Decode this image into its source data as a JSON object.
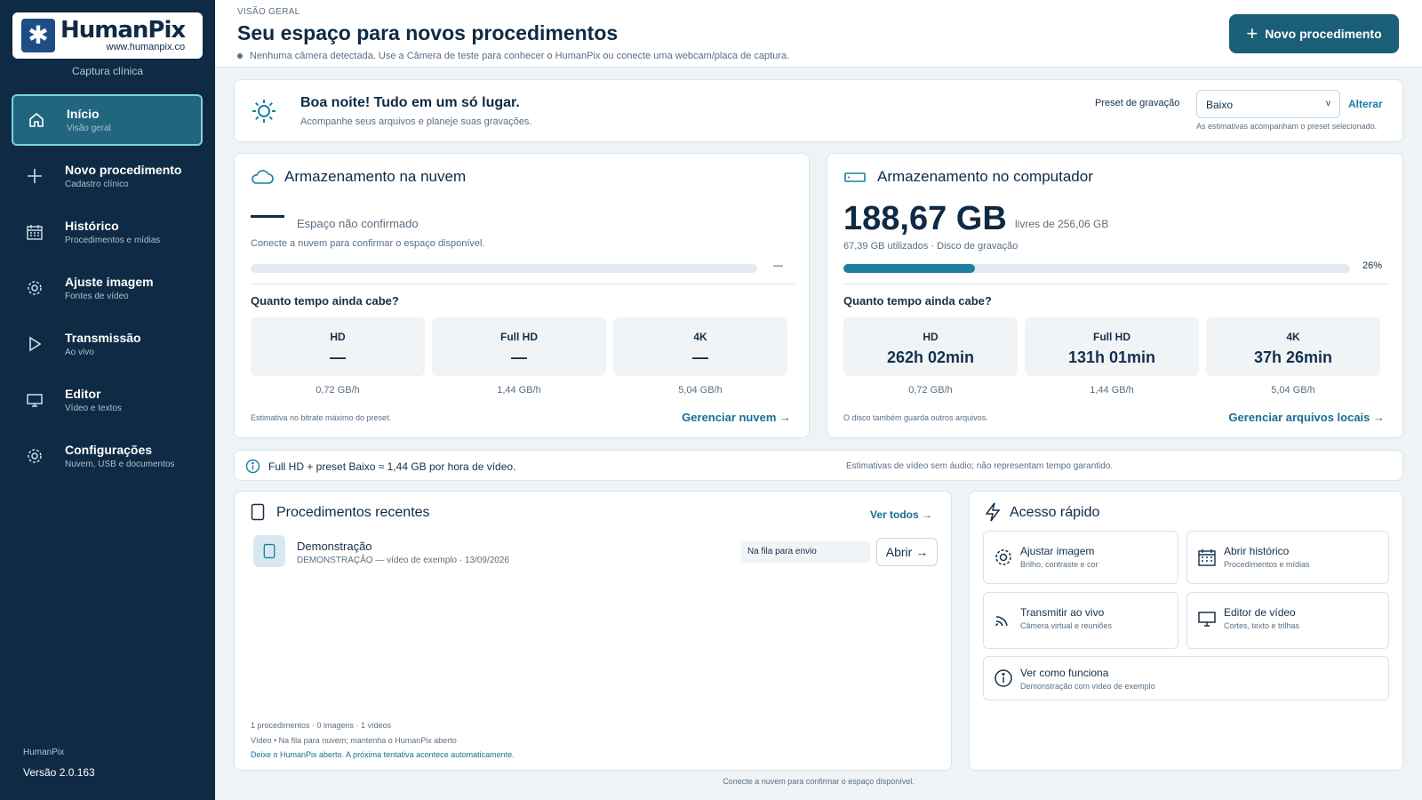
{
  "sidebar": {
    "logo_name": "HumanPix",
    "logo_url": "www.humanpix.co",
    "subtitle": "Captura clínica",
    "items": [
      {
        "label": "Início",
        "sub": "Visão geral",
        "icon": "home-icon"
      },
      {
        "label": "Novo procedimento",
        "sub": "Cadastro clínico",
        "icon": "plus-icon"
      },
      {
        "label": "Histórico",
        "sub": "Procedimentos e mídias",
        "icon": "calendar-icon"
      },
      {
        "label": "Ajuste imagem",
        "sub": "Fontes de vídeo",
        "icon": "gear-icon"
      },
      {
        "label": "Transmissão",
        "sub": "Ao vivo",
        "icon": "play-icon"
      },
      {
        "label": "Editor",
        "sub": "Vídeo e textos",
        "icon": "monitor-icon"
      },
      {
        "label": "Configurações",
        "sub": "Nuvem, USB e documentos",
        "icon": "gear-icon"
      }
    ],
    "footer_app": "HumanPix",
    "footer_version": "Versão 2.0.163"
  },
  "header": {
    "kicker": "VISÃO GERAL",
    "title": "Seu espaço para novos procedimentos",
    "camera_status": "Nenhuma câmera detectada. Use a Câmera de teste para conhecer o HumanPix ou conecte uma webcam/placa de captura.",
    "new_button": "Novo procedimento"
  },
  "greeting": {
    "title": "Boa noite! Tudo em um só lugar.",
    "subtitle": "Acompanhe seus arquivos e planeje suas gravações.",
    "preset_label": "Preset de gravação",
    "preset_value": "Baixo",
    "preset_change": "Alterar",
    "preset_note": "As estimativas acompanham o preset selecionado."
  },
  "cloud": {
    "title": "Armazenamento na nuvem",
    "state": "Espaço não confirmado",
    "hint": "Conecte a nuvem para confirmar o espaço disponível.",
    "percent_text": "—",
    "question": "Quanto tempo ainda cabe?",
    "tiles": [
      {
        "label": "HD",
        "value": "—",
        "rate": "0,72 GB/h"
      },
      {
        "label": "Full HD",
        "value": "—",
        "rate": "1,44 GB/h"
      },
      {
        "label": "4K",
        "value": "—",
        "rate": "5,04 GB/h"
      }
    ],
    "note": "Estimativa no bitrate máximo do preset.",
    "link": "Gerenciar nuvem →"
  },
  "local": {
    "title": "Armazenamento no computador",
    "free": "188,67 GB",
    "of_total": "livres de 256,06 GB",
    "used": "67,39 GB utilizados · Disco de gravação",
    "percent_text": "26%",
    "used_fraction": 0.26,
    "question": "Quanto tempo ainda cabe?",
    "tiles": [
      {
        "label": "HD",
        "value": "262h 02min",
        "rate": "0,72 GB/h"
      },
      {
        "label": "Full HD",
        "value": "131h 01min",
        "rate": "1,44 GB/h"
      },
      {
        "label": "4K",
        "value": "37h 26min",
        "rate": "5,04 GB/h"
      }
    ],
    "note": "O disco também guarda outros arquivos.",
    "link": "Gerenciar arquivos locais →"
  },
  "info": {
    "main": "Full HD + preset Baixo ≈ 1,44 GB por hora de vídeo.",
    "side": "Estimativas de vídeo sem áudio; não representam tempo garantido."
  },
  "recent": {
    "title": "Procedimentos recentes",
    "see_all": "Ver todos →",
    "items": [
      {
        "name": "Demonstração",
        "meta": "DEMONSTRAÇÃO — vídeo de exemplo · 13/09/2026",
        "status": "Na fila para envio",
        "open": "Abrir →"
      }
    ],
    "footer_counts": "1 procedimentos · 0 imagens · 1 vídeos",
    "footer_queue": "Vídeo • Na fila para nuvem; mantenha o HumanPix aberto",
    "footer_hint": "Deixe o HumanPix aberto. A próxima tentativa acontece automaticamente."
  },
  "quick": {
    "title": "Acesso rápido",
    "items": [
      {
        "label": "Ajustar imagem",
        "sub": "Brilho, contraste e cor",
        "icon": "gear-icon"
      },
      {
        "label": "Abrir histórico",
        "sub": "Procedimentos e mídias",
        "icon": "calendar-icon"
      },
      {
        "label": "Transmitir ao vivo",
        "sub": "Câmera virtual e reuniões",
        "icon": "broadcast-icon"
      },
      {
        "label": "Editor de vídeo",
        "sub": "Cortes, texto e trilhas",
        "icon": "monitor-icon"
      },
      {
        "label": "Ver como funciona",
        "sub": "Demonstração com vídeo de exemplo",
        "icon": "info-icon"
      }
    ]
  },
  "footer_note": "Conecte a nuvem para confirmar o espaço disponível.",
  "colors": {
    "sidebar": "#0f2a44",
    "accent": "#1b5e77",
    "active": "#22657e",
    "link": "#1a6f92"
  }
}
